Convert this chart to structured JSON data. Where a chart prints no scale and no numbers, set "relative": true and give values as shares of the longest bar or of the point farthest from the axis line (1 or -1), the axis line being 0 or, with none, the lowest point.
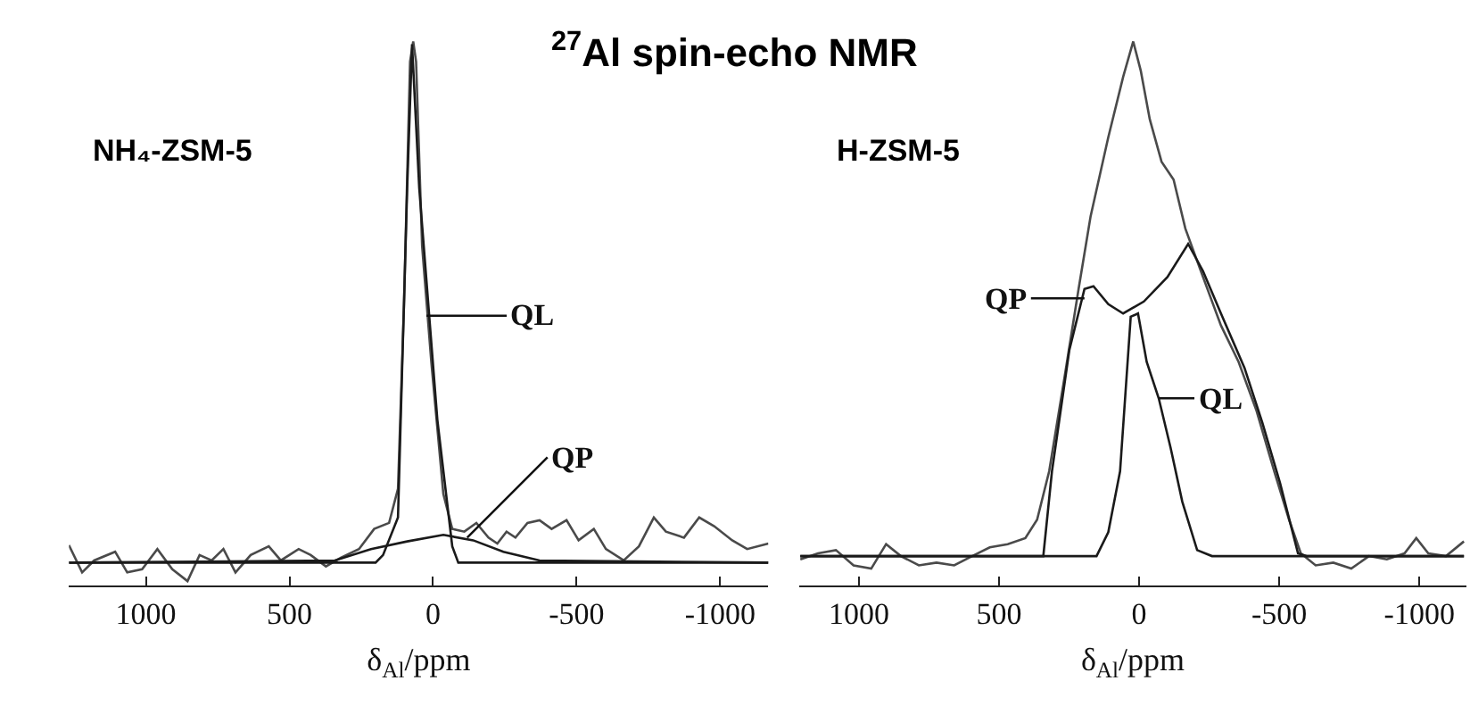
{
  "chart_data": [
    {
      "type": "line",
      "title": "$^{27}$Al spin-echo NMR",
      "subtitle": "NH₄-ZSM-5",
      "xlabel": "δ$_{Al}$/ppm",
      "relative": true,
      "xlim": [
        1268,
        -1168
      ],
      "xticks": [
        1000,
        500,
        0,
        -500,
        -1000
      ],
      "marker": "none",
      "line_style": "solid",
      "series": [
        {
          "color": "#4a4a4a",
          "x": [
            1268,
            1222,
            1180,
            1107,
            1065,
            1013,
            960,
            908,
            855,
            813,
            771,
            730,
            688,
            635,
            572,
            530,
            468,
            426,
            373,
            321,
            258,
            205,
            153,
            122,
            101,
            80,
            69,
            59,
            38,
            6,
            -36,
            -67,
            -109,
            -151,
            -193,
            -224,
            -256,
            -287,
            -329,
            -371,
            -413,
            -465,
            -507,
            -560,
            -602,
            -664,
            -717,
            -769,
            -811,
            -874,
            -927,
            -979,
            -1042,
            -1094,
            -1168
          ],
          "values": [
            0.074,
            0.024,
            0.046,
            0.062,
            0.024,
            0.03,
            0.067,
            0.03,
            0.008,
            0.056,
            0.046,
            0.067,
            0.024,
            0.056,
            0.072,
            0.046,
            0.067,
            0.056,
            0.035,
            0.051,
            0.067,
            0.104,
            0.115,
            0.178,
            0.517,
            0.963,
            1.0,
            0.963,
            0.624,
            0.411,
            0.168,
            0.104,
            0.099,
            0.115,
            0.088,
            0.077,
            0.099,
            0.088,
            0.115,
            0.12,
            0.104,
            0.12,
            0.083,
            0.104,
            0.067,
            0.046,
            0.072,
            0.125,
            0.099,
            0.088,
            0.125,
            0.109,
            0.083,
            0.067,
            0.077
          ]
        },
        {
          "color": "#1a1a1a",
          "x": [
            1268,
            200,
            174,
            122,
            90,
            73,
            48,
            -15,
            -67,
            -88,
            -1168
          ],
          "values": [
            0.042,
            0.042,
            0.056,
            0.125,
            0.73,
            0.995,
            0.73,
            0.305,
            0.072,
            0.042,
            0.042
          ]
        },
        {
          "color": "#1a1a1a",
          "x": [
            1268,
            342,
            216,
            90,
            -36,
            -140,
            -245,
            -371,
            -1168
          ],
          "values": [
            0.042,
            0.046,
            0.067,
            0.081,
            0.093,
            0.083,
            0.062,
            0.046,
            0.042
          ]
        }
      ],
      "annotations": [
        {
          "text": "QL",
          "x": 23,
          "y": 0.496
        },
        {
          "text": "QP",
          "x": -119,
          "y": 0.088
        }
      ]
    },
    {
      "type": "line",
      "subtitle": "H-ZSM-5",
      "xlabel": "δ$_{Al}$/ppm",
      "relative": true,
      "xlim": [
        1213,
        -1168
      ],
      "xticks": [
        1000,
        500,
        0,
        -500,
        -1000
      ],
      "marker": "none",
      "line_style": "solid",
      "series": [
        {
          "color": "#4a4a4a",
          "x": [
            1209,
            1146,
            1082,
            1019,
            956,
            903,
            850,
            786,
            723,
            660,
            596,
            533,
            469,
            406,
            364,
            321,
            268,
            216,
            173,
            110,
            57,
            21,
            -6,
            -38,
            -80,
            -123,
            -165,
            -228,
            -292,
            -355,
            -419,
            -482,
            -535,
            -577,
            -630,
            -693,
            -757,
            -820,
            -884,
            -947,
            -989,
            -1032,
            -1095,
            -1159
          ],
          "values": [
            0.048,
            0.059,
            0.065,
            0.037,
            0.031,
            0.076,
            0.054,
            0.037,
            0.042,
            0.037,
            0.054,
            0.07,
            0.076,
            0.087,
            0.121,
            0.21,
            0.377,
            0.545,
            0.679,
            0.824,
            0.935,
            1.0,
            0.946,
            0.857,
            0.779,
            0.746,
            0.656,
            0.567,
            0.478,
            0.411,
            0.321,
            0.21,
            0.121,
            0.059,
            0.037,
            0.042,
            0.031,
            0.054,
            0.048,
            0.059,
            0.087,
            0.059,
            0.054,
            0.081
          ]
        },
        {
          "color": "#1a1a1a",
          "x": [
            1209,
            152,
            110,
            68,
            30,
            4,
            -27,
            -70,
            -112,
            -154,
            -207,
            -260,
            -1159
          ],
          "values": [
            0.054,
            0.054,
            0.098,
            0.21,
            0.494,
            0.5,
            0.411,
            0.344,
            0.254,
            0.154,
            0.065,
            0.054,
            0.054
          ]
        },
        {
          "color": "#1a1a1a",
          "x": [
            1209,
            342,
            311,
            249,
            195,
            163,
            110,
            57,
            -17,
            -101,
            -175,
            -228,
            -292,
            -376,
            -440,
            -503,
            -567,
            -598,
            -1159
          ],
          "values": [
            0.054,
            0.054,
            0.21,
            0.433,
            0.545,
            0.55,
            0.517,
            0.5,
            0.522,
            0.567,
            0.628,
            0.578,
            0.5,
            0.4,
            0.299,
            0.188,
            0.059,
            0.054,
            0.054
          ]
        }
      ],
      "annotations": [
        {
          "text": "QP",
          "x": 195,
          "y": 0.528
        },
        {
          "text": "QL",
          "x": -70,
          "y": 0.344
        }
      ]
    }
  ]
}
